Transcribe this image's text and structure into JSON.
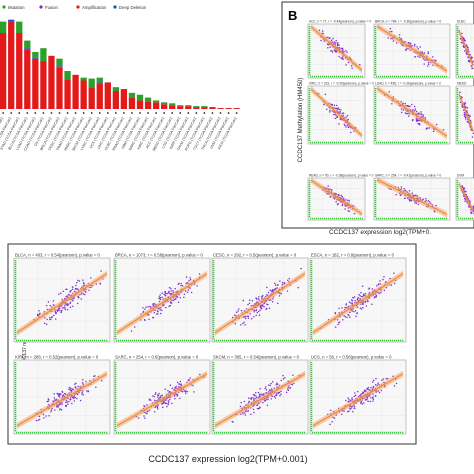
{
  "panel_a": {
    "legend": [
      {
        "label": "Mutation",
        "color": "#2ca02c"
      },
      {
        "label": "Fusion",
        "color": "#7b2fbe"
      },
      {
        "label": "Amplification",
        "color": "#e31a1c"
      },
      {
        "label": "Deep Deletion",
        "color": "#1f4fd1"
      }
    ],
    "tick_labels": [
      "UCEC (TCGA PanCan)",
      "ESCA (TCGA PanCan)",
      "STAD (TCGA PanCan)",
      "BLCA (TCGA PanCan)",
      "LUAD (TCGA PanCan)",
      "COAD (TCGA PanCan)",
      "OV (TCGA PanCan)",
      "BRCA (TCGA PanCan)",
      "CESC (TCGA PanCan)",
      "PAAD (TCGA PanCan)",
      "HNSC (TCGA PanCan)",
      "SKCM (TCGA PanCan)",
      "LUSC (TCGA PanCan)",
      "UCS (TCGA PanCan)",
      "LIHC (TCGA PanCan)",
      "DLBC (TCGA PanCan)",
      "PRAD (TCGA PanCan)",
      "GBM (TCGA PanCan)",
      "SARC (TCGA PanCan)",
      "KIRC (TCGA PanCan)",
      "ACC (TCGA PanCan)",
      "MESO (TCGA PanCan)",
      "LGG (TCGA PanCan)",
      "KIRP (TCGA PanCan)",
      "THYM (TCGA PanCan)",
      "PCPG (TCGA PanCan)",
      "TGCT (TCGA PanCan)",
      "THCA (TCGA PanCan)",
      "UVM (TCGA PanCan)",
      "KICH (TCGA PanCan)"
    ]
  },
  "panel_b": {
    "label": "B",
    "ylabel": "CCDC137 Methylation (HM450)",
    "xlabel": "CCDC137 expression log2(TPM+0.",
    "titles": [
      "ACC, n = 77, r = -0.44(pearson), p.value = 0",
      "BRCA, n = 784, r = -0.36(pearson), p.value = 0",
      "DLBC",
      "KIRC, n = 319, r = -0.39(pearson), p.value = 0",
      "LUAD, n = 456, r = -0.36(pearson), p.value = 0",
      "MESO",
      "READ, n = 90, r = -0.38(pearson), p.value = 0",
      "SARC, n = 254, r = -0.41(pearson), p.value = 0",
      "UVM"
    ]
  },
  "panel_c": {
    "ylabel": "CCDC137 relative linear copy number values",
    "xlabel": "CCDC137 expression log2(TPM+0.001)",
    "titles": [
      "BLCA, n = 403, r = 0.54(pearson), p.value = 0",
      "BRCA, n = 1073, r = 0.58(pearson), p.value = 0",
      "CESC, n = 292, r = 0.5(pearson), p.value = 0",
      "ESCA, n = 182, r = 0.6(pearson), p.value = 0",
      "KIRP, n = 288, r = 0.52(pearson), p.value = 0",
      "SARC, n = 254, r = 0.6(pearson), p.value = 0",
      "SKCM, n = 365, r = 0.54(pearson), p.value = 0",
      "UCS, n = 56, r = 0.58(pearson), p.value = 0"
    ]
  },
  "chart_data": [
    {
      "type": "bar",
      "panel": "A",
      "stacked": true,
      "categories": [
        "UCEC (TCGA PanCan)",
        "ESCA (TCGA PanCan)",
        "STAD (TCGA PanCan)",
        "BLCA (TCGA PanCan)",
        "LUAD (TCGA PanCan)",
        "COAD (TCGA PanCan)",
        "OV (TCGA PanCan)",
        "BRCA (TCGA PanCan)",
        "CESC (TCGA PanCan)",
        "PAAD (TCGA PanCan)",
        "HNSC (TCGA PanCan)",
        "SKCM (TCGA PanCan)",
        "LUSC (TCGA PanCan)",
        "UCS (TCGA PanCan)",
        "LIHC (TCGA PanCan)",
        "DLBC (TCGA PanCan)",
        "PRAD (TCGA PanCan)",
        "GBM (TCGA PanCan)",
        "SARC (TCGA PanCan)",
        "KIRC (TCGA PanCan)",
        "ACC (TCGA PanCan)",
        "MESO (TCGA PanCan)",
        "LGG (TCGA PanCan)",
        "KIRP (TCGA PanCan)",
        "THYM (TCGA PanCan)",
        "PCPG (TCGA PanCan)",
        "TGCT (TCGA PanCan)",
        "THCA (TCGA PanCan)",
        "UVM (TCGA PanCan)",
        "KICH (TCGA PanCan)"
      ],
      "series": [
        {
          "name": "Amplification",
          "color": "#e31a1c",
          "values": [
            8.0,
            9.2,
            8.0,
            6.3,
            5.3,
            5.0,
            5.6,
            4.4,
            3.1,
            3.6,
            3.0,
            2.3,
            2.7,
            2.8,
            1.9,
            2.1,
            1.2,
            0.9,
            0.8,
            0.7,
            0.5,
            0.4,
            0.3,
            0.3,
            0.2,
            0.2,
            0.2,
            0.1,
            0.1,
            0.1
          ]
        },
        {
          "name": "Deep Deletion",
          "color": "#1f4fd1",
          "values": [
            0,
            0.2,
            0,
            0.1,
            0.1,
            0,
            0,
            0,
            0,
            0,
            0,
            0,
            0.1,
            0,
            0,
            0,
            0,
            0,
            0,
            0,
            0,
            0,
            0,
            0,
            0,
            0,
            0,
            0,
            0,
            0
          ]
        },
        {
          "name": "Fusion",
          "color": "#7b2fbe",
          "values": [
            0,
            0,
            0,
            0,
            0,
            0,
            0,
            0.1,
            0,
            0,
            0,
            0,
            0,
            0,
            0,
            0,
            0,
            0,
            0,
            0,
            0,
            0,
            0,
            0,
            0,
            0,
            0,
            0,
            0,
            0
          ]
        },
        {
          "name": "Mutation",
          "color": "#2ca02c",
          "values": [
            1.2,
            0,
            1.2,
            0.8,
            0.6,
            1.4,
            0,
            0.8,
            0.9,
            0,
            0.3,
            0.9,
            0.5,
            0,
            0.4,
            0,
            0.5,
            0.6,
            0.4,
            0.2,
            0.2,
            0.2,
            0.1,
            0.1,
            0.1,
            0.1,
            0,
            0,
            0,
            0
          ]
        }
      ]
    }
  ]
}
